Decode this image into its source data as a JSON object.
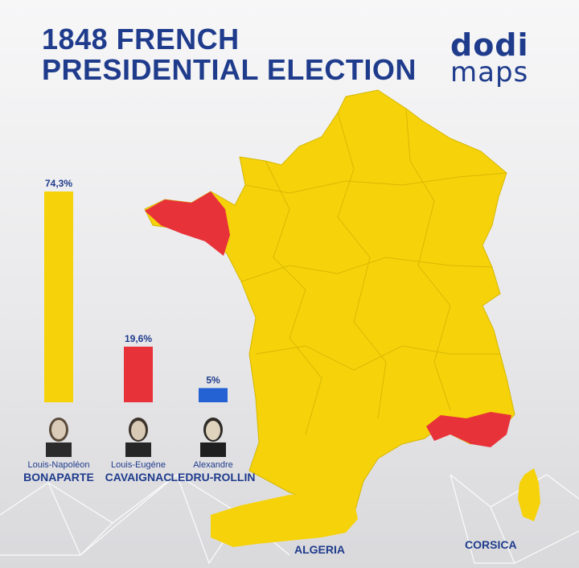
{
  "header": {
    "title_line1": "1848 FRENCH",
    "title_line2": "PRESIDENTIAL ELECTION",
    "logo_line1": "dodi",
    "logo_line2": "maps"
  },
  "colors": {
    "bonaparte": "#f5d20a",
    "cavaignac": "#e8323a",
    "ledru_rollin": "#2462d4",
    "text": "#1f3b8c",
    "map_border": "#d6b800"
  },
  "chart_data": {
    "type": "bar",
    "title": "1848 FRENCH PRESIDENTIAL ELECTION",
    "categories": [
      "Louis-Napoléon BONAPARTE",
      "Louis-Eugéne CAVAIGNAC",
      "Alexandre LEDRU-ROLLIN"
    ],
    "values": [
      74.3,
      19.6,
      5
    ],
    "value_labels": [
      "74,3%",
      "19,6%",
      "5%"
    ],
    "ylim": [
      0,
      74.3
    ],
    "grid": false,
    "candidates": [
      {
        "first": "Louis-Napoléon",
        "last": "BONAPARTE",
        "color": "#f5d20a"
      },
      {
        "first": "Louis-Eugéne",
        "last": "CAVAIGNAC",
        "color": "#e8323a"
      },
      {
        "first": "Alexandre",
        "last": "LEDRU-ROLLIN",
        "color": "#2462d4"
      }
    ]
  },
  "map": {
    "labels": {
      "algeria": "ALGERIA",
      "corsica": "CORSICA"
    },
    "icons": [
      "portrait-icon",
      "network-pattern"
    ]
  }
}
